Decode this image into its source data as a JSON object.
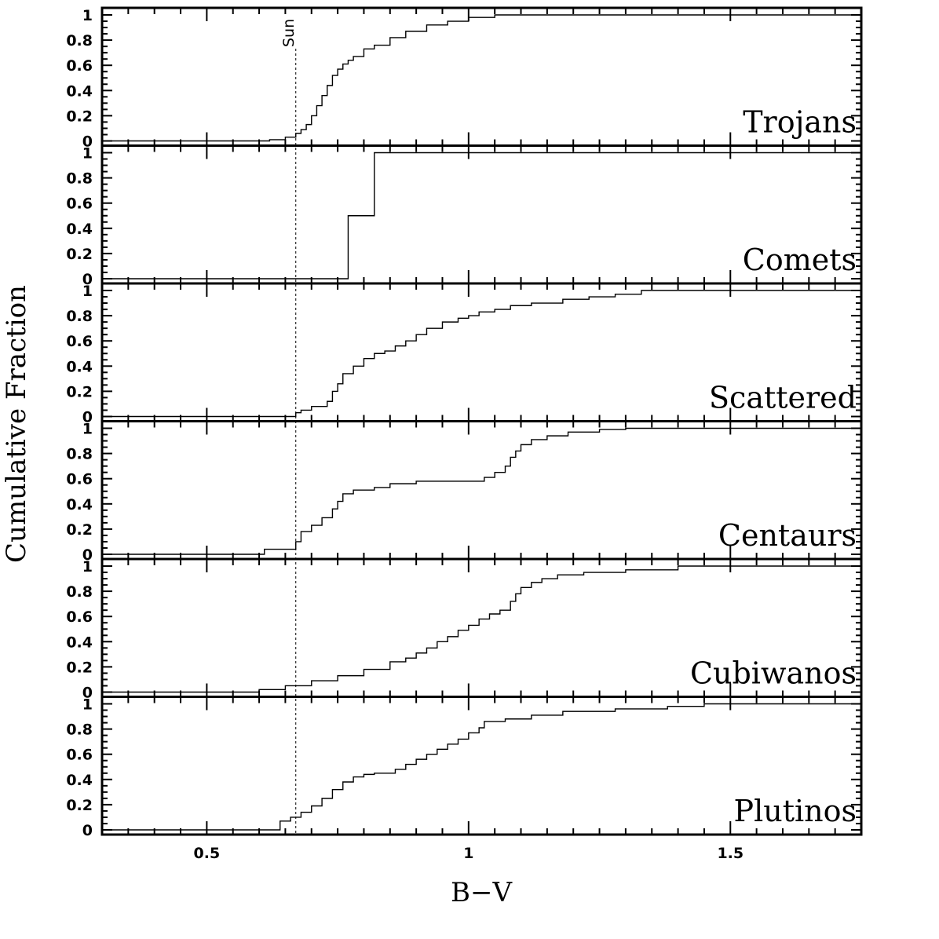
{
  "chart_data": {
    "type": "line",
    "step": true,
    "xlabel": "B−V",
    "ylabel": "Cumulative Fraction",
    "xlim": [
      0.3,
      1.75
    ],
    "ylim": [
      0,
      1
    ],
    "x_ticks": [
      {
        "v": 0.5,
        "label": "0.5"
      },
      {
        "v": 1,
        "label": "1"
      },
      {
        "v": 1.5,
        "label": "1.5"
      }
    ],
    "y_ticks": [
      {
        "v": 0,
        "label": "0"
      },
      {
        "v": 0.2,
        "label": "0.2"
      },
      {
        "v": 0.4,
        "label": "0.4"
      },
      {
        "v": 0.6,
        "label": "0.6"
      },
      {
        "v": 0.8,
        "label": "0.8"
      },
      {
        "v": 1,
        "label": "1"
      }
    ],
    "reference_line": {
      "x": 0.67,
      "label": "Sun",
      "style": "dashed"
    },
    "panels": [
      {
        "name": "Trojans",
        "x": [
          0.3,
          0.62,
          0.65,
          0.67,
          0.68,
          0.69,
          0.7,
          0.71,
          0.72,
          0.73,
          0.74,
          0.75,
          0.76,
          0.77,
          0.78,
          0.8,
          0.82,
          0.85,
          0.88,
          0.92,
          0.96,
          1.0,
          1.05,
          1.75
        ],
        "y": [
          0,
          0.01,
          0.03,
          0.06,
          0.09,
          0.13,
          0.2,
          0.28,
          0.36,
          0.44,
          0.52,
          0.57,
          0.61,
          0.64,
          0.67,
          0.73,
          0.76,
          0.82,
          0.87,
          0.92,
          0.95,
          0.98,
          1,
          1
        ]
      },
      {
        "name": "Comets",
        "x": [
          0.3,
          0.77,
          0.82,
          1.75
        ],
        "y": [
          0,
          0.5,
          1,
          1
        ]
      },
      {
        "name": "Scattered",
        "x": [
          0.3,
          0.67,
          0.68,
          0.7,
          0.73,
          0.74,
          0.75,
          0.76,
          0.78,
          0.8,
          0.82,
          0.84,
          0.86,
          0.88,
          0.9,
          0.92,
          0.95,
          0.98,
          1.0,
          1.02,
          1.05,
          1.08,
          1.12,
          1.18,
          1.23,
          1.28,
          1.33,
          1.75
        ],
        "y": [
          0,
          0.03,
          0.05,
          0.08,
          0.12,
          0.2,
          0.26,
          0.34,
          0.4,
          0.46,
          0.5,
          0.52,
          0.56,
          0.6,
          0.65,
          0.7,
          0.75,
          0.78,
          0.8,
          0.83,
          0.85,
          0.88,
          0.9,
          0.93,
          0.95,
          0.97,
          1,
          1
        ]
      },
      {
        "name": "Centaurs",
        "x": [
          0.3,
          0.61,
          0.67,
          0.68,
          0.7,
          0.72,
          0.74,
          0.75,
          0.76,
          0.78,
          0.82,
          0.85,
          0.9,
          0.95,
          1.0,
          1.03,
          1.05,
          1.07,
          1.08,
          1.09,
          1.1,
          1.12,
          1.15,
          1.19,
          1.25,
          1.3,
          1.75
        ],
        "y": [
          0,
          0.04,
          0.1,
          0.18,
          0.23,
          0.29,
          0.36,
          0.42,
          0.48,
          0.51,
          0.53,
          0.56,
          0.58,
          0.58,
          0.58,
          0.61,
          0.65,
          0.7,
          0.77,
          0.82,
          0.87,
          0.91,
          0.94,
          0.97,
          0.99,
          1,
          1
        ]
      },
      {
        "name": "Cubiwanos",
        "x": [
          0.3,
          0.6,
          0.65,
          0.7,
          0.75,
          0.8,
          0.85,
          0.88,
          0.9,
          0.92,
          0.94,
          0.96,
          0.98,
          1.0,
          1.02,
          1.04,
          1.06,
          1.08,
          1.09,
          1.1,
          1.12,
          1.14,
          1.17,
          1.22,
          1.3,
          1.4,
          1.75
        ],
        "y": [
          0,
          0.02,
          0.05,
          0.09,
          0.13,
          0.18,
          0.24,
          0.27,
          0.31,
          0.35,
          0.4,
          0.44,
          0.49,
          0.53,
          0.58,
          0.62,
          0.65,
          0.72,
          0.78,
          0.83,
          0.87,
          0.9,
          0.93,
          0.95,
          0.97,
          1,
          1
        ]
      },
      {
        "name": "Plutinos",
        "x": [
          0.3,
          0.64,
          0.66,
          0.68,
          0.7,
          0.72,
          0.74,
          0.76,
          0.78,
          0.8,
          0.82,
          0.86,
          0.88,
          0.9,
          0.92,
          0.94,
          0.96,
          0.98,
          1.0,
          1.02,
          1.03,
          1.07,
          1.12,
          1.18,
          1.28,
          1.38,
          1.45,
          1.75
        ],
        "y": [
          0,
          0.07,
          0.1,
          0.14,
          0.19,
          0.25,
          0.32,
          0.38,
          0.42,
          0.44,
          0.45,
          0.48,
          0.52,
          0.56,
          0.6,
          0.64,
          0.68,
          0.72,
          0.77,
          0.81,
          0.86,
          0.88,
          0.91,
          0.94,
          0.96,
          0.98,
          1,
          1
        ]
      }
    ]
  }
}
